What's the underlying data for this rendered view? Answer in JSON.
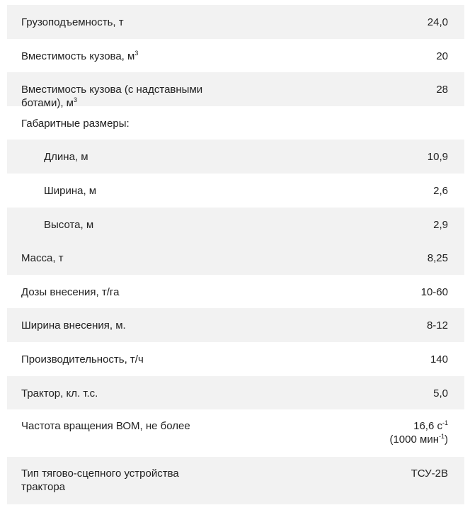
{
  "rows": [
    {
      "label": "Грузоподъемность, т",
      "value": "24,0",
      "shaded": true
    },
    {
      "label": "Вместимость кузова, м",
      "label_sup": "3",
      "value": "20",
      "shaded": false
    },
    {
      "label": "Вместимость кузова (с надставными ботами), м",
      "label_sup": "3",
      "value": "28",
      "shaded": true
    },
    {
      "label": "Габаритные размеры:",
      "value": "",
      "shaded": false
    },
    {
      "label": "Длина, м",
      "value": "10,9",
      "shaded": true,
      "indent": true
    },
    {
      "label": "Ширина, м",
      "value": "2,6",
      "shaded": false,
      "indent": true
    },
    {
      "label": "Высота, м",
      "value": "2,9",
      "shaded": true,
      "indent": true
    },
    {
      "label": "Масса, т",
      "value": "8,25",
      "shaded": true
    },
    {
      "label": "Дозы внесения, т/га",
      "value": "10-60",
      "shaded": false
    },
    {
      "label": "Ширина внесения, м.",
      "value": "8-12",
      "shaded": true
    },
    {
      "label": "Производительность, т/ч",
      "value": "140",
      "shaded": false
    },
    {
      "label": "Трактор, кл. т.с.",
      "value": "5,0",
      "shaded": true
    },
    {
      "label": "Частота вращения ВОМ, не более",
      "value": "16,6 с",
      "value_sup": "-1",
      "value_line2": "(1000 мин",
      "value_line2_sup": "-1",
      "value_line2_end": ")",
      "shaded": false
    },
    {
      "label": "Тип тягово-сцепного устройства трактора",
      "value": "ТСУ-2В",
      "shaded": true
    }
  ]
}
